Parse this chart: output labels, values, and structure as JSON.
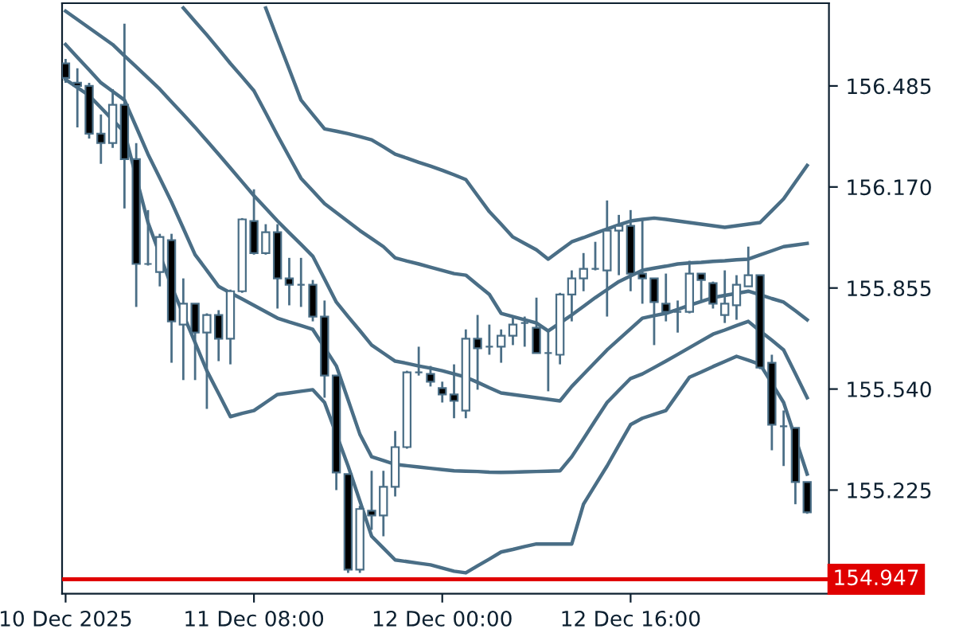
{
  "chart_data": {
    "type": "candlestick",
    "categories": [
      "10 Dec 2025",
      null,
      null,
      null,
      null,
      null,
      null,
      null,
      null,
      null,
      null,
      null,
      null,
      null,
      null,
      null,
      "11 Dec 08:00",
      null,
      null,
      null,
      null,
      null,
      null,
      null,
      null,
      null,
      null,
      null,
      null,
      null,
      null,
      null,
      "12 Dec 00:00",
      null,
      null,
      null,
      null,
      null,
      null,
      null,
      null,
      null,
      null,
      null,
      null,
      null,
      null,
      null,
      "12 Dec 16:00",
      null,
      null,
      null,
      null,
      null,
      null,
      null,
      null,
      null,
      null,
      null,
      null,
      null,
      null,
      null
    ],
    "ohlc": [
      [
        156.555,
        156.569,
        156.495,
        156.51
      ],
      [
        156.495,
        156.54,
        156.356,
        156.485
      ],
      [
        156.485,
        156.495,
        156.321,
        156.336
      ],
      [
        156.336,
        156.396,
        156.242,
        156.307
      ],
      [
        156.307,
        156.475,
        156.292,
        156.426
      ],
      [
        156.426,
        156.679,
        156.103,
        156.257
      ],
      [
        156.257,
        156.307,
        155.796,
        155.93
      ],
      [
        155.93,
        156.098,
        155.925,
        155.93
      ],
      [
        155.905,
        156.024,
        155.86,
        156.014
      ],
      [
        156.004,
        156.024,
        155.622,
        155.751
      ],
      [
        155.741,
        155.885,
        155.568,
        155.806
      ],
      [
        155.806,
        155.806,
        155.568,
        155.716
      ],
      [
        155.716,
        155.776,
        155.478,
        155.771
      ],
      [
        155.771,
        155.786,
        155.627,
        155.697
      ],
      [
        155.697,
        155.85,
        155.617,
        155.845
      ],
      [
        155.845,
        156.073,
        155.84,
        156.069
      ],
      [
        156.064,
        156.163,
        155.959,
        155.964
      ],
      [
        155.964,
        156.054,
        155.959,
        156.029
      ],
      [
        156.029,
        156.054,
        155.791,
        155.885
      ],
      [
        155.885,
        155.949,
        155.801,
        155.865
      ],
      [
        155.865,
        155.949,
        155.796,
        155.865
      ],
      [
        155.865,
        155.88,
        155.751,
        155.766
      ],
      [
        155.766,
        155.816,
        155.513,
        155.582
      ],
      [
        155.582,
        155.582,
        155.225,
        155.28
      ],
      [
        155.275,
        155.275,
        154.967,
        154.977
      ],
      [
        154.977,
        155.176,
        154.967,
        155.166
      ],
      [
        155.161,
        155.285,
        155.101,
        155.146
      ],
      [
        155.146,
        155.285,
        155.081,
        155.235
      ],
      [
        155.235,
        155.409,
        155.205,
        155.359
      ],
      [
        155.359,
        155.597,
        155.354,
        155.592
      ],
      [
        155.592,
        155.672,
        155.582,
        155.592
      ],
      [
        155.587,
        155.612,
        155.548,
        155.563
      ],
      [
        155.543,
        155.563,
        155.498,
        155.523
      ],
      [
        155.523,
        155.617,
        155.449,
        155.503
      ],
      [
        155.473,
        155.726,
        155.449,
        155.697
      ],
      [
        155.697,
        155.771,
        155.538,
        155.667
      ],
      [
        155.672,
        155.741,
        155.647,
        155.672
      ],
      [
        155.672,
        155.726,
        155.622,
        155.706
      ],
      [
        155.706,
        155.766,
        155.677,
        155.741
      ],
      [
        155.746,
        155.766,
        155.672,
        155.746
      ],
      [
        155.731,
        155.825,
        155.652,
        155.652
      ],
      [
        155.652,
        155.721,
        155.533,
        155.652
      ],
      [
        155.647,
        155.84,
        155.617,
        155.835
      ],
      [
        155.835,
        155.91,
        155.751,
        155.885
      ],
      [
        155.885,
        155.964,
        155.845,
        155.915
      ],
      [
        155.915,
        155.999,
        155.91,
        155.915
      ],
      [
        155.91,
        156.128,
        155.766,
        156.034
      ],
      [
        156.034,
        156.083,
        155.895,
        156.049
      ],
      [
        156.049,
        156.098,
        155.845,
        155.9
      ],
      [
        155.9,
        156.069,
        155.806,
        155.885
      ],
      [
        155.885,
        155.885,
        155.677,
        155.811
      ],
      [
        155.806,
        155.9,
        155.751,
        155.781
      ],
      [
        155.781,
        155.816,
        155.716,
        155.781
      ],
      [
        155.781,
        155.94,
        155.776,
        155.9
      ],
      [
        155.9,
        155.9,
        155.811,
        155.88
      ],
      [
        155.87,
        155.875,
        155.791,
        155.806
      ],
      [
        155.771,
        155.91,
        155.746,
        155.806
      ],
      [
        155.801,
        155.895,
        155.756,
        155.865
      ],
      [
        155.86,
        155.984,
        155.86,
        155.895
      ],
      [
        155.895,
        155.895,
        155.602,
        155.607
      ],
      [
        155.622,
        155.647,
        155.349,
        155.429
      ],
      [
        155.424,
        155.473,
        155.3,
        155.424
      ],
      [
        155.419,
        155.419,
        155.181,
        155.25
      ],
      [
        155.25,
        155.25,
        155.151,
        155.156
      ]
    ],
    "series": [
      {
        "type": "line",
        "color": "#4a6e86",
        "values": [
          null,
          null,
          null,
          null,
          null,
          null,
          null,
          null,
          null,
          null,
          null,
          null,
          null,
          null,
          null,
          null,
          null,
          156.728,
          156.632,
          156.537,
          156.441,
          156.396,
          156.351,
          156.344,
          156.336,
          156.327,
          156.317,
          156.295,
          156.272,
          156.26,
          156.247,
          156.235,
          156.222,
          156.208,
          156.193,
          156.143,
          156.093,
          156.054,
          156.014,
          155.994,
          155.974,
          155.945,
          155.972,
          155.999,
          156.012,
          156.026,
          156.039,
          156.052,
          156.064,
          156.069,
          156.073,
          156.069,
          156.064,
          156.059,
          156.054,
          156.049,
          156.044,
          156.049,
          156.054,
          156.059,
          156.096,
          156.133,
          156.185,
          156.237
        ]
      },
      {
        "type": "line",
        "color": "#4a6e86",
        "values": [
          null,
          null,
          null,
          null,
          null,
          null,
          null,
          null,
          null,
          null,
          156.728,
          156.686,
          156.644,
          156.6,
          156.555,
          156.513,
          156.47,
          156.401,
          156.331,
          156.264,
          156.197,
          156.158,
          156.118,
          156.09,
          156.062,
          156.034,
          156.009,
          155.984,
          155.949,
          155.939,
          155.93,
          155.92,
          155.91,
          155.9,
          155.895,
          155.865,
          155.835,
          155.776,
          155.766,
          155.756,
          155.746,
          155.721,
          155.746,
          155.771,
          155.798,
          155.825,
          155.85,
          155.875,
          155.893,
          155.91,
          155.917,
          155.923,
          155.93,
          155.933,
          155.935,
          155.938,
          155.94,
          155.943,
          155.945,
          155.958,
          155.971,
          155.984,
          155.989,
          155.994
        ]
      },
      {
        "type": "line",
        "color": "#4a6e86",
        "values": [
          156.718,
          156.692,
          156.666,
          156.64,
          156.614,
          156.579,
          156.545,
          156.51,
          156.475,
          156.435,
          156.396,
          156.356,
          156.314,
          156.272,
          156.229,
          156.186,
          156.143,
          156.104,
          156.064,
          156.027,
          155.991,
          155.954,
          155.883,
          155.811,
          155.766,
          155.722,
          155.677,
          155.652,
          155.627,
          155.62,
          155.612,
          155.605,
          155.597,
          155.587,
          155.577,
          155.561,
          155.544,
          155.528,
          155.523,
          155.518,
          155.513,
          155.508,
          155.503,
          155.548,
          155.586,
          155.624,
          155.662,
          155.695,
          155.728,
          155.761,
          155.769,
          155.776,
          155.788,
          155.801,
          155.813,
          155.825,
          155.832,
          155.838,
          155.845,
          155.834,
          155.822,
          155.811,
          155.784,
          155.756
        ]
      },
      {
        "type": "line",
        "color": "#4a6e86",
        "values": [
          156.614,
          156.574,
          156.535,
          156.495,
          156.468,
          156.441,
          156.357,
          156.272,
          156.198,
          156.123,
          156.041,
          155.959,
          155.91,
          155.86,
          155.84,
          155.821,
          155.801,
          155.781,
          155.761,
          155.749,
          155.738,
          155.726,
          155.669,
          155.612,
          155.506,
          155.399,
          155.329,
          155.317,
          155.305,
          155.301,
          155.297,
          155.293,
          155.289,
          155.285,
          155.284,
          155.283,
          155.281,
          155.28,
          155.281,
          155.282,
          155.283,
          155.284,
          155.285,
          155.329,
          155.385,
          155.442,
          155.498,
          155.536,
          155.573,
          155.587,
          155.607,
          155.627,
          155.648,
          155.669,
          155.69,
          155.711,
          155.724,
          155.738,
          155.751,
          155.721,
          155.692,
          155.662,
          155.588,
          155.513
        ]
      },
      {
        "type": "line",
        "color": "#4a6e86",
        "values": [
          156.505,
          156.48,
          156.455,
          156.417,
          156.379,
          156.341,
          156.2,
          156.059,
          155.96,
          155.86,
          155.772,
          155.685,
          155.597,
          155.526,
          155.454,
          155.464,
          155.473,
          155.498,
          155.523,
          155.528,
          155.533,
          155.538,
          155.498,
          155.399,
          155.3,
          155.191,
          155.081,
          155.044,
          155.007,
          155.002,
          154.997,
          154.992,
          154.982,
          154.972,
          154.967,
          154.989,
          155.01,
          155.032,
          155.04,
          155.049,
          155.057,
          155.057,
          155.057,
          155.057,
          155.181,
          155.241,
          155.3,
          155.365,
          155.429,
          155.449,
          155.461,
          155.473,
          155.525,
          155.577,
          155.593,
          155.61,
          155.626,
          155.642,
          155.63,
          155.617,
          155.558,
          155.498,
          155.387,
          155.275
        ]
      }
    ],
    "ylim": [
      154.902,
      156.743
    ],
    "yticks": [
      {
        "value": 156.485,
        "label": "156.485"
      },
      {
        "value": 156.17,
        "label": "156.170"
      },
      {
        "value": 155.855,
        "label": "155.855"
      },
      {
        "value": 155.54,
        "label": "155.540"
      },
      {
        "value": 155.225,
        "label": "155.225"
      }
    ],
    "ref_lines": [
      {
        "axis": "y",
        "value": 154.947,
        "label": "154.947",
        "color": "#e00000"
      }
    ]
  }
}
